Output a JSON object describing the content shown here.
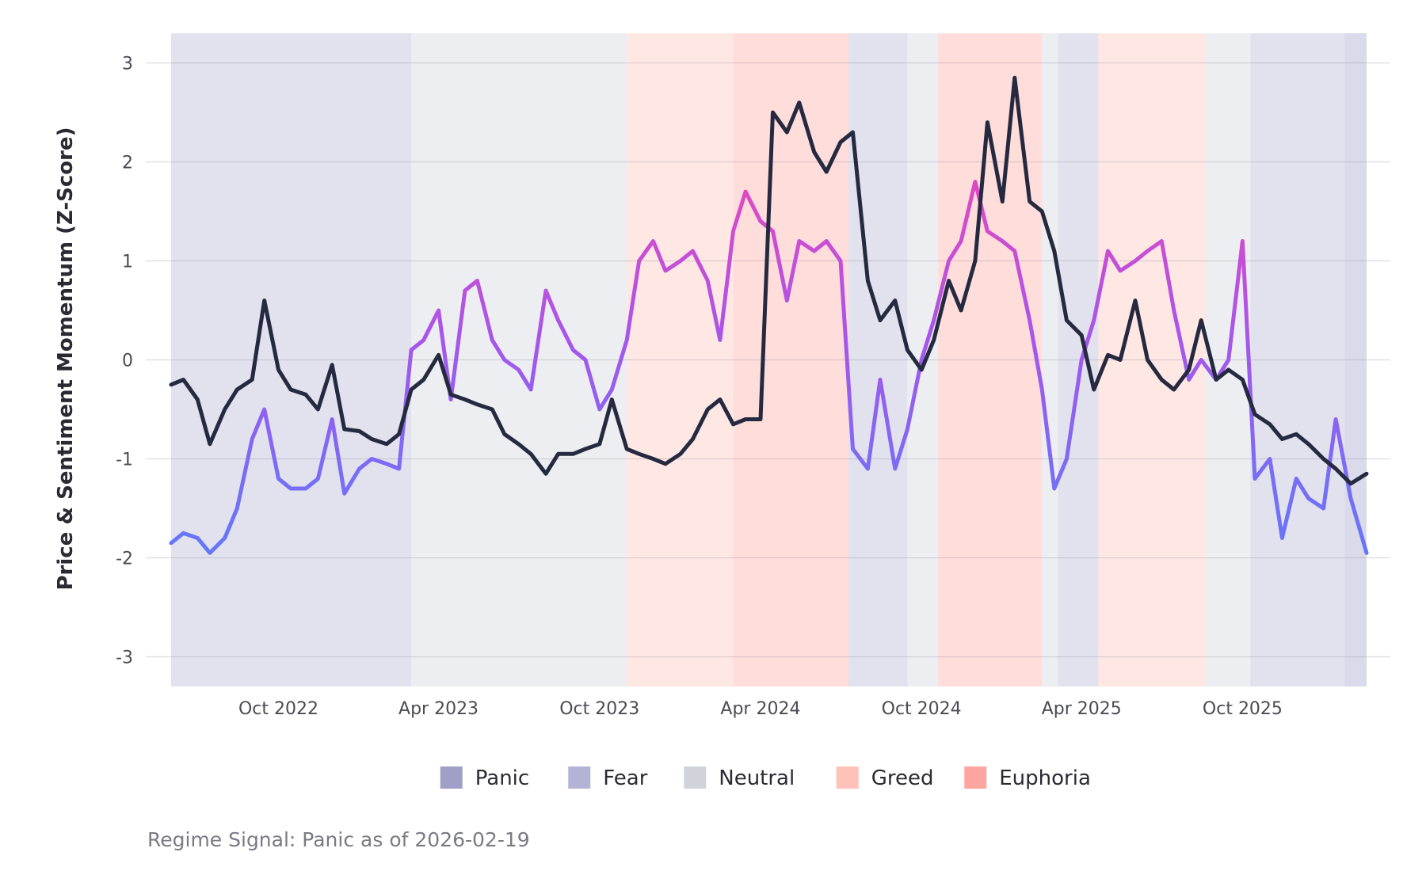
{
  "chart_data": {
    "type": "line",
    "title": "",
    "xlabel": "",
    "ylabel": "Price & Sentiment Momentum (Z-Score)",
    "caption": "Regime Signal: Panic as of 2026-02-19",
    "x_range": [
      "2022-06-01",
      "2026-02-19"
    ],
    "ylim": [
      -3.3,
      3.3
    ],
    "y_ticks": [
      3,
      2,
      1,
      0,
      -1,
      -2,
      -3
    ],
    "y_tick_labels": [
      "3",
      "2",
      "1",
      "0",
      "-1",
      "-2",
      "-3"
    ],
    "x_ticks": [
      {
        "date": "2022-10-01",
        "label": "Oct 2022"
      },
      {
        "date": "2023-04-01",
        "label": "Apr 2023"
      },
      {
        "date": "2023-10-01",
        "label": "Oct 2023"
      },
      {
        "date": "2024-04-01",
        "label": "Apr 2024"
      },
      {
        "date": "2024-10-01",
        "label": "Oct 2024"
      },
      {
        "date": "2025-04-01",
        "label": "Apr 2025"
      },
      {
        "date": "2025-10-01",
        "label": "Oct 2025"
      }
    ],
    "grid": true,
    "legend_position": "bottom",
    "regimes": [
      {
        "name": "Panic",
        "color": "#9f9fc8"
      },
      {
        "name": "Fear",
        "color": "#b3b3d6"
      },
      {
        "name": "Neutral",
        "color": "#d0d3d9"
      },
      {
        "name": "Greed",
        "color": "#ffc2b8"
      },
      {
        "name": "Euphoria",
        "color": "#ffa5a0"
      }
    ],
    "regime_periods": [
      {
        "start": "2022-06-01",
        "end": "2023-03-01",
        "regime": "Fear"
      },
      {
        "start": "2023-03-01",
        "end": "2023-11-01",
        "regime": "Neutral"
      },
      {
        "start": "2023-11-01",
        "end": "2024-03-01",
        "regime": "Greed"
      },
      {
        "start": "2024-03-01",
        "end": "2024-07-10",
        "regime": "Euphoria"
      },
      {
        "start": "2024-07-10",
        "end": "2024-09-15",
        "regime": "Fear"
      },
      {
        "start": "2024-09-15",
        "end": "2024-10-20",
        "regime": "Neutral"
      },
      {
        "start": "2024-10-20",
        "end": "2025-02-15",
        "regime": "Euphoria"
      },
      {
        "start": "2025-02-15",
        "end": "2025-03-05",
        "regime": "Neutral"
      },
      {
        "start": "2025-03-05",
        "end": "2025-04-20",
        "regime": "Fear"
      },
      {
        "start": "2025-04-20",
        "end": "2025-08-20",
        "regime": "Greed"
      },
      {
        "start": "2025-08-20",
        "end": "2025-10-10",
        "regime": "Neutral"
      },
      {
        "start": "2025-10-10",
        "end": "2026-01-25",
        "regime": "Fear"
      },
      {
        "start": "2026-01-25",
        "end": "2026-02-19",
        "regime": "Panic"
      }
    ],
    "series": [
      {
        "name": "",
        "color": "#262a40",
        "x": [
          "2022-06-01",
          "2022-06-15",
          "2022-07-01",
          "2022-07-15",
          "2022-08-01",
          "2022-08-15",
          "2022-09-01",
          "2022-09-15",
          "2022-10-01",
          "2022-10-15",
          "2022-11-01",
          "2022-11-15",
          "2022-12-01",
          "2022-12-15",
          "2023-01-01",
          "2023-01-15",
          "2023-02-01",
          "2023-02-15",
          "2023-03-01",
          "2023-03-15",
          "2023-04-01",
          "2023-04-15",
          "2023-05-01",
          "2023-05-15",
          "2023-06-01",
          "2023-06-15",
          "2023-07-01",
          "2023-07-15",
          "2023-08-01",
          "2023-08-15",
          "2023-09-01",
          "2023-09-15",
          "2023-10-01",
          "2023-10-15",
          "2023-11-01",
          "2023-11-15",
          "2023-12-01",
          "2023-12-15",
          "2024-01-01",
          "2024-01-15",
          "2024-02-01",
          "2024-02-15",
          "2024-03-01",
          "2024-03-15",
          "2024-04-01",
          "2024-04-15",
          "2024-05-01",
          "2024-05-15",
          "2024-06-01",
          "2024-06-15",
          "2024-07-01",
          "2024-07-15",
          "2024-08-01",
          "2024-08-15",
          "2024-09-01",
          "2024-09-15",
          "2024-10-01",
          "2024-10-15",
          "2024-11-01",
          "2024-11-15",
          "2024-12-01",
          "2024-12-15",
          "2025-01-01",
          "2025-01-15",
          "2025-02-01",
          "2025-02-15",
          "2025-03-01",
          "2025-03-15",
          "2025-04-01",
          "2025-04-15",
          "2025-05-01",
          "2025-05-15",
          "2025-06-01",
          "2025-06-15",
          "2025-07-01",
          "2025-07-15",
          "2025-08-01",
          "2025-08-15",
          "2025-09-01",
          "2025-09-15",
          "2025-10-01",
          "2025-10-15",
          "2025-11-01",
          "2025-11-15",
          "2025-12-01",
          "2025-12-15",
          "2026-01-01",
          "2026-01-15",
          "2026-02-01",
          "2026-02-19"
        ],
        "values": [
          -0.25,
          -0.2,
          -0.4,
          -0.85,
          -0.5,
          -0.3,
          -0.2,
          0.6,
          -0.1,
          -0.3,
          -0.35,
          -0.5,
          -0.05,
          -0.7,
          -0.72,
          -0.8,
          -0.85,
          -0.75,
          -0.3,
          -0.2,
          0.05,
          -0.35,
          -0.4,
          -0.45,
          -0.5,
          -0.75,
          -0.85,
          -0.95,
          -1.15,
          -0.95,
          -0.95,
          -0.9,
          -0.85,
          -0.4,
          -0.9,
          -0.95,
          -1.0,
          -1.05,
          -0.95,
          -0.8,
          -0.5,
          -0.4,
          -0.65,
          -0.6,
          -0.6,
          2.5,
          2.3,
          2.6,
          2.1,
          1.9,
          2.2,
          2.3,
          0.8,
          0.4,
          0.6,
          0.1,
          -0.1,
          0.2,
          0.8,
          0.5,
          1.0,
          2.4,
          1.6,
          2.85,
          1.6,
          1.5,
          1.1,
          0.4,
          0.25,
          -0.3,
          0.05,
          0.0,
          0.6,
          0.0,
          -0.2,
          -0.3,
          -0.1,
          0.4,
          -0.2,
          -0.1,
          -0.2,
          -0.55,
          -0.65,
          -0.8,
          -0.75,
          -0.85,
          -1.0,
          -1.1,
          -1.25,
          -1.15
        ]
      },
      {
        "name": "",
        "color": "#9b55e8",
        "x": [
          "2022-06-01",
          "2022-06-15",
          "2022-07-01",
          "2022-07-15",
          "2022-08-01",
          "2022-08-15",
          "2022-09-01",
          "2022-09-15",
          "2022-10-01",
          "2022-10-15",
          "2022-11-01",
          "2022-11-15",
          "2022-12-01",
          "2022-12-15",
          "2023-01-01",
          "2023-01-15",
          "2023-02-01",
          "2023-02-15",
          "2023-03-01",
          "2023-03-15",
          "2023-04-01",
          "2023-04-15",
          "2023-05-01",
          "2023-05-15",
          "2023-06-01",
          "2023-06-15",
          "2023-07-01",
          "2023-07-15",
          "2023-08-01",
          "2023-08-15",
          "2023-09-01",
          "2023-09-15",
          "2023-10-01",
          "2023-10-15",
          "2023-11-01",
          "2023-11-15",
          "2023-12-01",
          "2023-12-15",
          "2024-01-01",
          "2024-01-15",
          "2024-02-01",
          "2024-02-15",
          "2024-03-01",
          "2024-03-15",
          "2024-04-01",
          "2024-04-15",
          "2024-05-01",
          "2024-05-15",
          "2024-06-01",
          "2024-06-15",
          "2024-07-01",
          "2024-07-15",
          "2024-08-01",
          "2024-08-15",
          "2024-09-01",
          "2024-09-15",
          "2024-10-01",
          "2024-10-15",
          "2024-11-01",
          "2024-11-15",
          "2024-12-01",
          "2024-12-15",
          "2025-01-01",
          "2025-01-15",
          "2025-02-01",
          "2025-02-15",
          "2025-03-01",
          "2025-03-15",
          "2025-04-01",
          "2025-04-15",
          "2025-05-01",
          "2025-05-15",
          "2025-06-01",
          "2025-06-15",
          "2025-07-01",
          "2025-07-15",
          "2025-08-01",
          "2025-08-15",
          "2025-09-01",
          "2025-09-15",
          "2025-10-01",
          "2025-10-15",
          "2025-11-01",
          "2025-11-15",
          "2025-12-01",
          "2025-12-15",
          "2026-01-01",
          "2026-01-15",
          "2026-02-01",
          "2026-02-19"
        ],
        "values": [
          -1.85,
          -1.75,
          -1.8,
          -1.95,
          -1.8,
          -1.5,
          -0.8,
          -0.5,
          -1.2,
          -1.3,
          -1.3,
          -1.2,
          -0.6,
          -1.35,
          -1.1,
          -1.0,
          -1.05,
          -1.1,
          0.1,
          0.2,
          0.5,
          -0.4,
          0.7,
          0.8,
          0.2,
          0.0,
          -0.1,
          -0.3,
          0.7,
          0.4,
          0.1,
          0.0,
          -0.5,
          -0.3,
          0.2,
          1.0,
          1.2,
          0.9,
          1.0,
          1.1,
          0.8,
          0.2,
          1.3,
          1.7,
          1.4,
          1.3,
          0.6,
          1.2,
          1.1,
          1.2,
          1.0,
          -0.9,
          -1.1,
          -0.2,
          -1.1,
          -0.7,
          0.0,
          0.4,
          1.0,
          1.2,
          1.8,
          1.3,
          1.2,
          1.1,
          0.4,
          -0.3,
          -1.3,
          -1.0,
          0.0,
          0.4,
          1.1,
          0.9,
          1.0,
          1.1,
          1.2,
          0.5,
          -0.2,
          0.0,
          -0.2,
          0.0,
          1.2,
          -1.2,
          -1.0,
          -1.8,
          -1.2,
          -1.4,
          -1.5,
          -0.6,
          -1.4,
          -1.95
        ]
      }
    ]
  }
}
